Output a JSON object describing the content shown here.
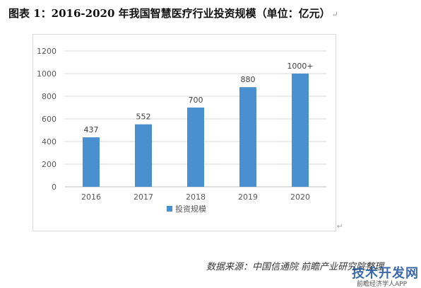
{
  "caption": "图表 1：2016-2020 年我国智慧医疗行业投资规模（单位：亿元）",
  "paragraph_mark": "↵",
  "source": "数据来源：中国信通院 前瞻产业研究院整理",
  "watermark": {
    "logo_text": "技术开发网",
    "small_text": "前瞻经济学人APP"
  },
  "colors": {
    "bar": "#4a8fd0",
    "grid": "#d9d9d9",
    "axis": "#bfbfbf"
  },
  "chart_data": {
    "type": "bar",
    "title": "",
    "xlabel": "",
    "ylabel": "",
    "categories": [
      "2016",
      "2017",
      "2018",
      "2019",
      "2020"
    ],
    "series": [
      {
        "name": "投资规模",
        "values": [
          437,
          552,
          700,
          880,
          1000
        ],
        "labels": [
          "437",
          "552",
          "700",
          "880",
          "1000+"
        ]
      }
    ],
    "ylim": [
      0,
      1200
    ],
    "yticks": [
      0,
      200,
      400,
      600,
      800,
      1000,
      1200
    ],
    "grid": true,
    "legend": "bottom"
  }
}
